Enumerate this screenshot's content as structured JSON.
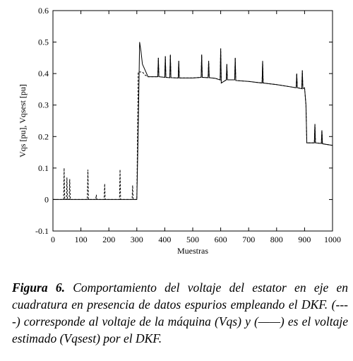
{
  "chart_data": {
    "type": "line",
    "ylabel": "Vqs [pu], Vqsest [pu]",
    "xlabel": "Muestras",
    "xlim": [
      0,
      1000
    ],
    "xticks": [
      0,
      100,
      200,
      300,
      400,
      500,
      600,
      700,
      800,
      900,
      1000
    ],
    "ylim": [
      -0.1,
      0.6
    ],
    "yticks": [
      -0.1,
      0,
      0.1,
      0.2,
      0.3,
      0.4,
      0.5,
      0.6
    ],
    "x": [
      0,
      38,
      40,
      42,
      48,
      50,
      52,
      58,
      60,
      62,
      123,
      125,
      127,
      153,
      155,
      157,
      183,
      185,
      187,
      238,
      240,
      242,
      283,
      285,
      287,
      300,
      305,
      310,
      315,
      320,
      330,
      340,
      375,
      377,
      379,
      400,
      402,
      404,
      418,
      420,
      422,
      448,
      450,
      452,
      500,
      530,
      532,
      534,
      555,
      557,
      559,
      580,
      598,
      600,
      602,
      620,
      622,
      624,
      650,
      652,
      654,
      700,
      748,
      750,
      752,
      800,
      870,
      872,
      874,
      890,
      892,
      894,
      900,
      905,
      908,
      935,
      937,
      939,
      960,
      962,
      964,
      1000
    ],
    "series": [
      {
        "color": "#000000",
        "style": "solid",
        "values": [
          0,
          0,
          0,
          0,
          0,
          0,
          0,
          0,
          0,
          0,
          0,
          0,
          0,
          0,
          0,
          0,
          0,
          0,
          0,
          0,
          0,
          0,
          0,
          0,
          0,
          0,
          0.22,
          0.5,
          0.47,
          0.43,
          0.41,
          0.39,
          0.39,
          0.45,
          0.39,
          0.388,
          0.455,
          0.388,
          0.387,
          0.46,
          0.387,
          0.386,
          0.44,
          0.386,
          0.386,
          0.388,
          0.46,
          0.388,
          0.387,
          0.44,
          0.387,
          0.385,
          0.38,
          0.48,
          0.37,
          0.38,
          0.43,
          0.38,
          0.38,
          0.45,
          0.378,
          0.375,
          0.37,
          0.44,
          0.37,
          0.365,
          0.355,
          0.4,
          0.355,
          0.352,
          0.41,
          0.352,
          0.355,
          0.3,
          0.18,
          0.18,
          0.24,
          0.18,
          0.178,
          0.22,
          0.177,
          0.172
        ]
      },
      {
        "color": "#000000",
        "style": "dashed",
        "values": [
          0,
          0,
          0.1,
          0,
          0,
          0.07,
          0,
          0,
          0.065,
          0,
          0,
          0.095,
          0,
          0,
          0.015,
          0,
          0,
          0.05,
          0,
          0,
          0.095,
          0,
          0,
          0.045,
          0,
          0,
          0.405,
          0.405,
          0.405,
          0.405,
          0.395,
          0.39,
          0.39,
          0.45,
          0.39,
          0.388,
          0.455,
          0.388,
          0.387,
          0.46,
          0.387,
          0.386,
          0.44,
          0.386,
          0.386,
          0.388,
          0.46,
          0.388,
          0.387,
          0.44,
          0.387,
          0.385,
          0.38,
          0.48,
          0.37,
          0.38,
          0.43,
          0.38,
          0.38,
          0.45,
          0.378,
          0.375,
          0.37,
          0.44,
          0.37,
          0.365,
          0.355,
          0.4,
          0.355,
          0.352,
          0.41,
          0.352,
          0.355,
          0.3,
          0.18,
          0.18,
          0.24,
          0.18,
          0.178,
          0.22,
          0.177,
          0.172
        ]
      }
    ]
  },
  "caption": {
    "label": "Figura 6.",
    "text": "Comportamiento del voltaje del estator en eje en cuadratura en presencia de datos espurios empleando el DKF. (----) corresponde al voltaje de la máquina (Vqs) y (——) es el voltaje estimado (Vqsest) por el DKF."
  }
}
